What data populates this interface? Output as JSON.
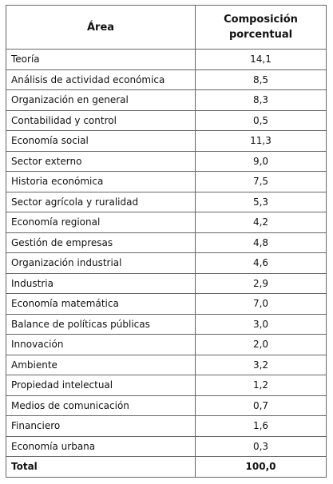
{
  "table": {
    "header": [
      "Área",
      "Composición porcentual"
    ],
    "rows": [
      [
        "Teoría",
        "14,1"
      ],
      [
        "Análisis de actividad económica",
        "8,5"
      ],
      [
        "Organización en general",
        "8,3"
      ],
      [
        "Contabilidad y control",
        "0,5"
      ],
      [
        "Economía social",
        "11,3"
      ],
      [
        "Sector externo",
        "9,0"
      ],
      [
        "Historia económica",
        "7,5"
      ],
      [
        "Sector agrícola y ruralidad",
        "5,3"
      ],
      [
        "Economía regional",
        "4,2"
      ],
      [
        "Gestión de empresas",
        "4,8"
      ],
      [
        "Organización industrial",
        "4,6"
      ],
      [
        "Industria",
        "2,9"
      ],
      [
        "Economía matemática",
        "7,0"
      ],
      [
        "Balance de políticas públicas",
        "3,0"
      ],
      [
        "Innovación",
        "2,0"
      ],
      [
        "Ambiente",
        "3,2"
      ],
      [
        "Propiedad intelectual",
        "1,2"
      ],
      [
        "Medios de comunicación",
        "0,7"
      ],
      [
        "Financiero",
        "1,6"
      ],
      [
        "Economía urbana",
        "0,3"
      ]
    ],
    "total": [
      "Total",
      "100,0"
    ]
  }
}
